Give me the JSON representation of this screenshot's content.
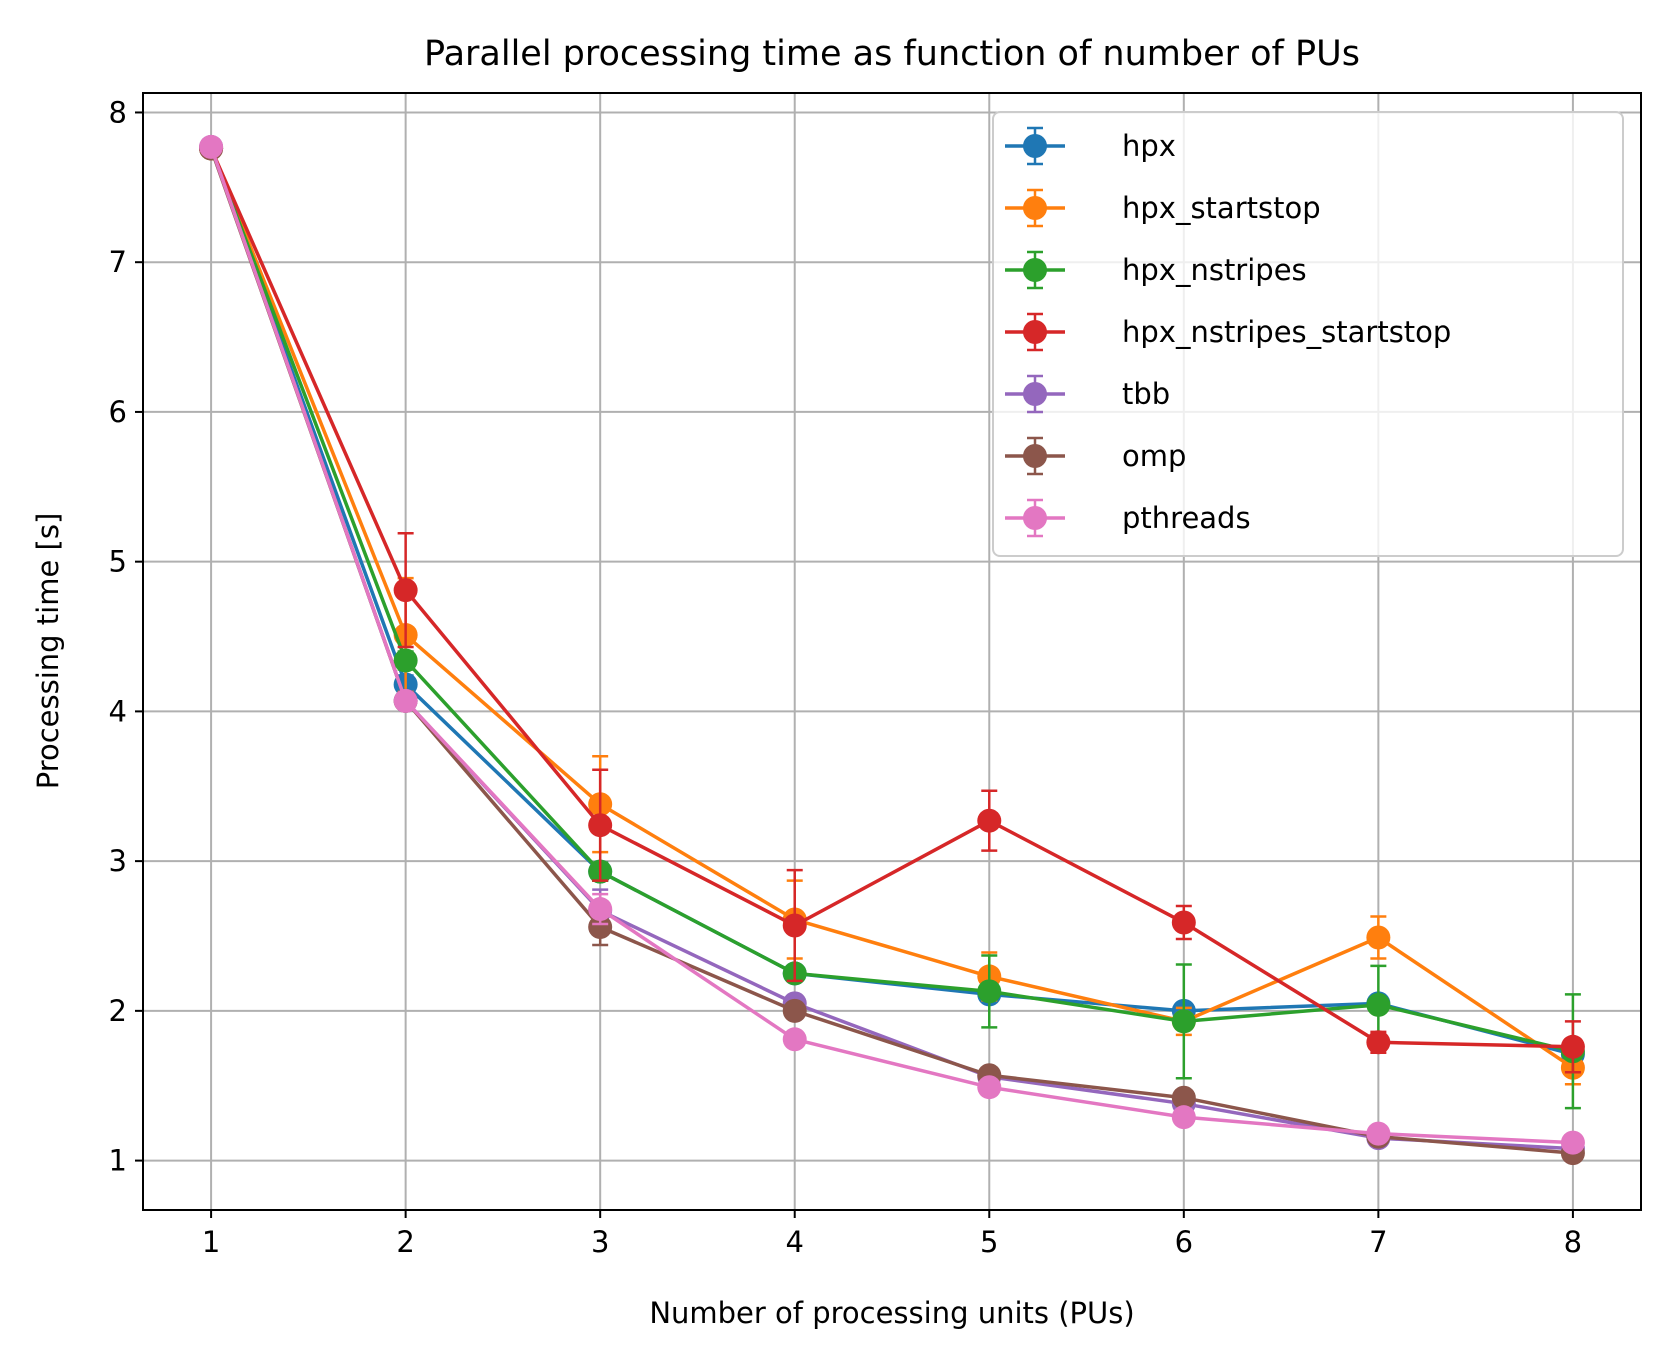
{
  "chart_data": {
    "type": "line",
    "title": "Parallel processing time as function of number of PUs",
    "xlabel": "Number of processing units (PUs)",
    "ylabel": "Processing time [s]",
    "x": [
      1,
      2,
      3,
      4,
      5,
      6,
      7,
      8
    ],
    "xticks": [
      "1",
      "2",
      "3",
      "4",
      "5",
      "6",
      "7",
      "8"
    ],
    "yticks": [
      "1",
      "2",
      "3",
      "4",
      "5",
      "6",
      "7",
      "8"
    ],
    "xlim": [
      0.65,
      8.35
    ],
    "ylim": [
      0.67,
      8.13
    ],
    "grid": true,
    "legend_position": "upper right",
    "error_bars": true,
    "series": [
      {
        "name": "hpx",
        "color": "#1f77b4",
        "values": [
          7.76,
          4.18,
          2.93,
          2.25,
          2.11,
          2.0,
          2.05,
          1.71
        ],
        "errors": [
          0.01,
          0.06,
          0.06,
          0.05,
          0.05,
          0.05,
          0.04,
          0.04
        ]
      },
      {
        "name": "hpx_startstop",
        "color": "#ff7f0e",
        "values": [
          7.76,
          4.51,
          3.38,
          2.61,
          2.23,
          1.93,
          2.49,
          1.62
        ],
        "errors": [
          0.01,
          0.38,
          0.32,
          0.26,
          0.16,
          0.09,
          0.14,
          0.11
        ]
      },
      {
        "name": "hpx_nstripes",
        "color": "#2ca02c",
        "values": [
          7.76,
          4.34,
          2.93,
          2.25,
          2.13,
          1.93,
          2.04,
          1.73
        ],
        "errors": [
          0.01,
          0.06,
          0.06,
          0.05,
          0.24,
          0.38,
          0.26,
          0.38
        ]
      },
      {
        "name": "hpx_nstripes_startstop",
        "color": "#d62728",
        "values": [
          7.76,
          4.81,
          3.24,
          2.57,
          3.27,
          2.59,
          1.79,
          1.76
        ],
        "errors": [
          0.01,
          0.38,
          0.37,
          0.37,
          0.2,
          0.11,
          0.07,
          0.17
        ]
      },
      {
        "name": "tbb",
        "color": "#9467bd",
        "values": [
          7.77,
          4.07,
          2.67,
          2.05,
          1.56,
          1.38,
          1.15,
          1.08
        ],
        "errors": [
          0.01,
          0.03,
          0.14,
          0.05,
          0.03,
          0.03,
          0.03,
          0.03
        ]
      },
      {
        "name": "omp",
        "color": "#8c564b",
        "values": [
          7.76,
          4.07,
          2.56,
          2.0,
          1.57,
          1.42,
          1.16,
          1.05
        ],
        "errors": [
          0.01,
          0.03,
          0.12,
          0.05,
          0.03,
          0.03,
          0.03,
          0.03
        ]
      },
      {
        "name": "pthreads",
        "color": "#e377c2",
        "values": [
          7.77,
          4.07,
          2.68,
          1.81,
          1.49,
          1.29,
          1.18,
          1.12
        ],
        "errors": [
          0.01,
          0.03,
          0.1,
          0.04,
          0.03,
          0.03,
          0.03,
          0.03
        ]
      }
    ]
  }
}
